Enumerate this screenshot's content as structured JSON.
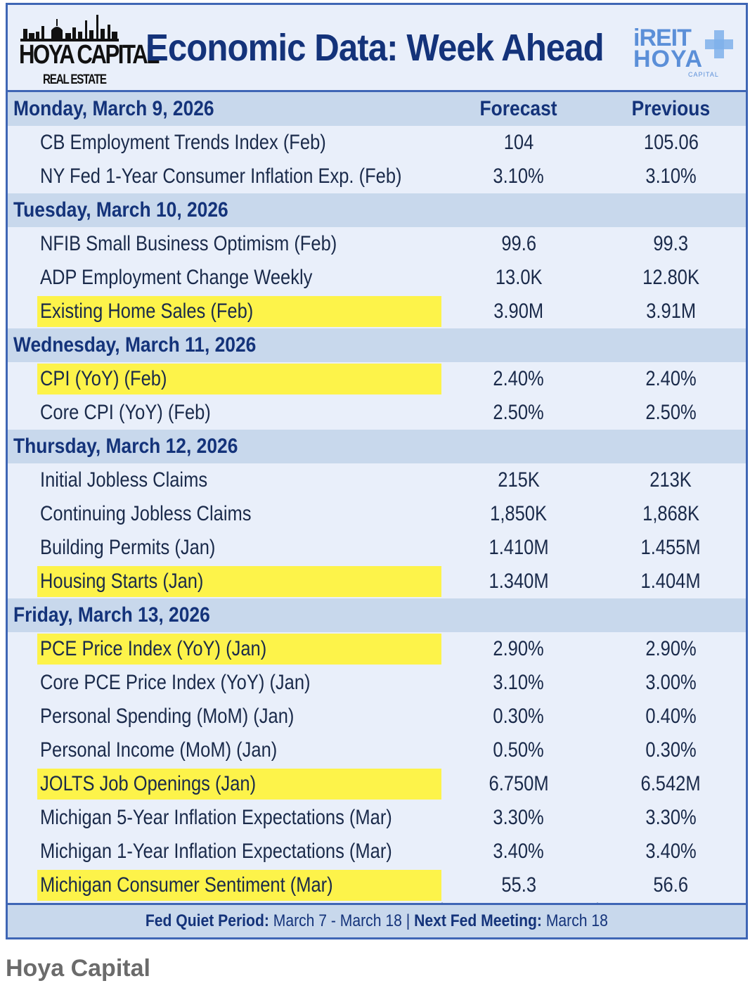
{
  "header": {
    "logo_title": "HOYA CAPITAL",
    "logo_subtitle": "REAL ESTATE",
    "title": "Economic Data: Week Ahead",
    "right_logo_line1": "iREIT",
    "right_logo_line2": "HOYA",
    "right_logo_small": "CAPITAL"
  },
  "columns": {
    "forecast": "Forecast",
    "previous": "Previous"
  },
  "days": [
    {
      "date": "Monday, March 9, 2026",
      "items": [
        {
          "label": "CB Employment Trends Index (Feb)",
          "forecast": "104",
          "previous": "105.06",
          "highlight": false
        },
        {
          "label": "NY Fed 1-Year Consumer Inflation Exp. (Feb)",
          "forecast": "3.10%",
          "previous": "3.10%",
          "highlight": false
        }
      ]
    },
    {
      "date": "Tuesday, March 10, 2026",
      "items": [
        {
          "label": "NFIB Small Business Optimism (Feb)",
          "forecast": "99.6",
          "previous": "99.3",
          "highlight": false
        },
        {
          "label": "ADP Employment Change Weekly",
          "forecast": "13.0K",
          "previous": "12.80K",
          "highlight": false
        },
        {
          "label": "Existing Home Sales (Feb)",
          "forecast": "3.90M",
          "previous": "3.91M",
          "highlight": true
        }
      ]
    },
    {
      "date": "Wednesday, March 11, 2026",
      "items": [
        {
          "label": "CPI (YoY) (Feb)",
          "forecast": "2.40%",
          "previous": "2.40%",
          "highlight": true
        },
        {
          "label": "Core CPI (YoY) (Feb)",
          "forecast": "2.50%",
          "previous": "2.50%",
          "highlight": false
        }
      ]
    },
    {
      "date": "Thursday, March 12, 2026",
      "items": [
        {
          "label": "Initial Jobless Claims",
          "forecast": "215K",
          "previous": "213K",
          "highlight": false
        },
        {
          "label": "Continuing Jobless Claims",
          "forecast": "1,850K",
          "previous": "1,868K",
          "highlight": false
        },
        {
          "label": "Building Permits (Jan)",
          "forecast": "1.410M",
          "previous": "1.455M",
          "highlight": false
        },
        {
          "label": "Housing Starts (Jan)",
          "forecast": "1.340M",
          "previous": "1.404M",
          "highlight": true
        }
      ]
    },
    {
      "date": "Friday, March 13, 2026",
      "items": [
        {
          "label": "PCE Price Index (YoY) (Jan)",
          "forecast": "2.90%",
          "previous": "2.90%",
          "highlight": true
        },
        {
          "label": "Core PCE Price Index (YoY) (Jan)",
          "forecast": "3.10%",
          "previous": "3.00%",
          "highlight": false
        },
        {
          "label": "Personal Spending (MoM) (Jan)",
          "forecast": "0.30%",
          "previous": "0.40%",
          "highlight": false
        },
        {
          "label": "Personal Income (MoM) (Jan)",
          "forecast": "0.50%",
          "previous": "0.30%",
          "highlight": false
        },
        {
          "label": "JOLTS Job Openings (Jan)",
          "forecast": "6.750M",
          "previous": "6.542M",
          "highlight": true
        },
        {
          "label": "Michigan 5-Year Inflation Expectations (Mar)",
          "forecast": "3.30%",
          "previous": "3.30%",
          "highlight": false
        },
        {
          "label": "Michigan 1-Year Inflation Expectations (Mar)",
          "forecast": "3.40%",
          "previous": "3.40%",
          "highlight": false
        },
        {
          "label": "Michigan Consumer Sentiment (Mar)",
          "forecast": "55.3",
          "previous": "56.6",
          "highlight": true
        }
      ]
    }
  ],
  "footer": {
    "quiet_label": "Fed Quiet Period:",
    "quiet_value": " March 7 - March 18 | ",
    "next_label": "Next Fed Meeting:",
    "next_value": " March 18"
  },
  "caption": "Hoya Capital",
  "colors": {
    "border": "#3f66b5",
    "title": "#14337a",
    "section_bg": "#c8d8ec",
    "row_bg": "#e9effa",
    "highlight": "#fdf34a"
  }
}
